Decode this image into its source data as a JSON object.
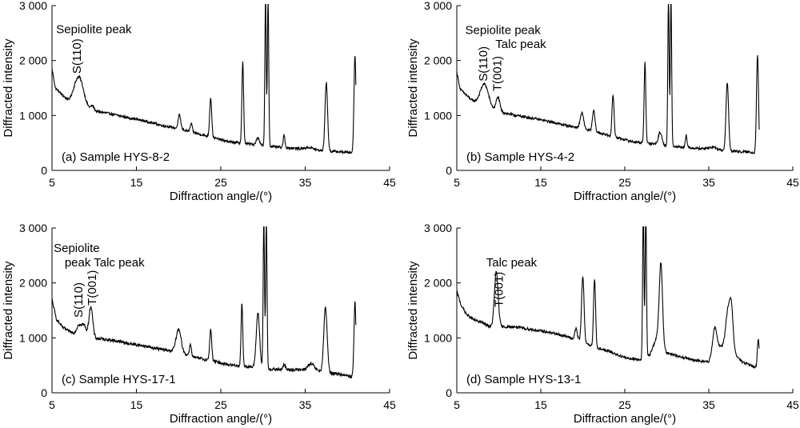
{
  "chart_data": [
    {
      "type": "line",
      "panel": "a",
      "sample_label": "(a) Sample HYS-8-2",
      "xlabel": "Diffraction angle/(°)",
      "ylabel": "Diffracted intensity",
      "xlim": [
        5,
        45
      ],
      "ylim": [
        0,
        3000
      ],
      "xticks": [
        "5",
        "15",
        "25",
        "35",
        "45"
      ],
      "yticks": [
        "0",
        "1 000",
        "2 000",
        "3 000"
      ],
      "annotations": [
        {
          "text": "Sepiolite peak",
          "x": 5.5,
          "y": 2500,
          "rotate": false
        },
        {
          "text": "S(110)",
          "x": 8.4,
          "y": 1760,
          "rotate": true
        }
      ],
      "baseline": [
        [
          5,
          1850
        ],
        [
          5.4,
          1500
        ],
        [
          6.2,
          1380
        ],
        [
          7,
          1250
        ],
        [
          7.6,
          1230
        ],
        [
          9,
          1120
        ],
        [
          10,
          1080
        ],
        [
          12,
          1030
        ],
        [
          14,
          960
        ],
        [
          16,
          900
        ],
        [
          18,
          820
        ],
        [
          20,
          760
        ],
        [
          22,
          680
        ],
        [
          24,
          600
        ],
        [
          26,
          520
        ],
        [
          28,
          490
        ],
        [
          30,
          450
        ],
        [
          32,
          420
        ],
        [
          34,
          400
        ],
        [
          36,
          370
        ],
        [
          38,
          350
        ],
        [
          40,
          330
        ],
        [
          41,
          310
        ]
      ],
      "peaks": [
        {
          "x": 8.2,
          "h": 520,
          "w": 0.55
        },
        {
          "x": 9.8,
          "h": 80,
          "w": 0.2
        },
        {
          "x": 20.1,
          "h": 250,
          "w": 0.15
        },
        {
          "x": 21.5,
          "h": 150,
          "w": 0.12
        },
        {
          "x": 23.8,
          "h": 720,
          "w": 0.12
        },
        {
          "x": 27.6,
          "h": 1480,
          "w": 0.1
        },
        {
          "x": 29.4,
          "h": 130,
          "w": 0.2
        },
        {
          "x": 30.3,
          "h": 2700,
          "w": 0.08
        },
        {
          "x": 30.6,
          "h": 2700,
          "w": 0.08
        },
        {
          "x": 32.5,
          "h": 230,
          "w": 0.1
        },
        {
          "x": 35.5,
          "h": 40,
          "w": 0.5
        },
        {
          "x": 37.5,
          "h": 1250,
          "w": 0.15
        },
        {
          "x": 40.9,
          "h": 1790,
          "w": 0.12
        }
      ],
      "noise": 22
    },
    {
      "type": "line",
      "panel": "b",
      "sample_label": "(b) Sample HYS-4-2",
      "xlabel": "Diffraction angle/(°)",
      "ylabel": "Diffracted intensity",
      "xlim": [
        5,
        45
      ],
      "ylim": [
        0,
        3000
      ],
      "xticks": [
        "5",
        "15",
        "25",
        "35",
        "45"
      ],
      "yticks": [
        "0",
        "1 000",
        "2 000",
        "3 000"
      ],
      "annotations": [
        {
          "text": "Sepiolite peak",
          "x": 6.0,
          "y": 2480,
          "rotate": false
        },
        {
          "text": "Talc peak",
          "x": 9.6,
          "y": 2230,
          "rotate": false
        },
        {
          "text": "S(110)",
          "x": 8.6,
          "y": 1620,
          "rotate": true
        },
        {
          "text": "T(001)",
          "x": 10.3,
          "y": 1440,
          "rotate": true
        }
      ],
      "baseline": [
        [
          5,
          1800
        ],
        [
          5.4,
          1480
        ],
        [
          6.2,
          1360
        ],
        [
          7,
          1250
        ],
        [
          7.6,
          1200
        ],
        [
          9,
          1100
        ],
        [
          10,
          1070
        ],
        [
          12,
          1000
        ],
        [
          14,
          950
        ],
        [
          16,
          890
        ],
        [
          18,
          820
        ],
        [
          20,
          760
        ],
        [
          22,
          680
        ],
        [
          24,
          600
        ],
        [
          26,
          520
        ],
        [
          28,
          490
        ],
        [
          30,
          450
        ],
        [
          32,
          420
        ],
        [
          34,
          400
        ],
        [
          36,
          370
        ],
        [
          38,
          350
        ],
        [
          40,
          330
        ],
        [
          41,
          310
        ]
      ],
      "peaks": [
        {
          "x": 8.3,
          "h": 420,
          "w": 0.5
        },
        {
          "x": 9.9,
          "h": 260,
          "w": 0.22
        },
        {
          "x": 19.9,
          "h": 280,
          "w": 0.2
        },
        {
          "x": 21.3,
          "h": 380,
          "w": 0.15
        },
        {
          "x": 23.6,
          "h": 760,
          "w": 0.12
        },
        {
          "x": 27.4,
          "h": 1480,
          "w": 0.1
        },
        {
          "x": 29.2,
          "h": 230,
          "w": 0.2
        },
        {
          "x": 30.2,
          "h": 2700,
          "w": 0.08
        },
        {
          "x": 30.5,
          "h": 2700,
          "w": 0.08
        },
        {
          "x": 32.3,
          "h": 230,
          "w": 0.1
        },
        {
          "x": 35.5,
          "h": 40,
          "w": 0.5
        },
        {
          "x": 37.2,
          "h": 1250,
          "w": 0.15
        },
        {
          "x": 40.8,
          "h": 1790,
          "w": 0.12
        }
      ],
      "noise": 22
    },
    {
      "type": "line",
      "panel": "c",
      "sample_label": "(c) Sample HYS-17-1",
      "xlabel": "Diffraction angle/(°)",
      "ylabel": "Diffracted intensity",
      "xlim": [
        5,
        45
      ],
      "ylim": [
        0,
        3000
      ],
      "xticks": [
        "5",
        "15",
        "25",
        "35",
        "45"
      ],
      "yticks": [
        "0",
        "1 000",
        "2 000",
        "3 000"
      ],
      "annotations": [
        {
          "text": "Sepiolite",
          "x": 5.2,
          "y": 2560,
          "rotate": false
        },
        {
          "text": "peak Talc peak",
          "x": 6.5,
          "y": 2300,
          "rotate": false
        },
        {
          "text": "S(110)",
          "x": 8.6,
          "y": 1370,
          "rotate": true
        },
        {
          "text": "T(001)",
          "x": 10.2,
          "y": 1590,
          "rotate": true
        }
      ],
      "baseline": [
        [
          5,
          1700
        ],
        [
          5.5,
          1350
        ],
        [
          6.2,
          1200
        ],
        [
          7,
          1120
        ],
        [
          7.8,
          1080
        ],
        [
          9.2,
          1000
        ],
        [
          10.2,
          990
        ],
        [
          12,
          960
        ],
        [
          14,
          900
        ],
        [
          16,
          850
        ],
        [
          18,
          790
        ],
        [
          20,
          740
        ],
        [
          22,
          640
        ],
        [
          24,
          580
        ],
        [
          26,
          510
        ],
        [
          28,
          480
        ],
        [
          30,
          440
        ],
        [
          32,
          420
        ],
        [
          34,
          420
        ],
        [
          36,
          400
        ],
        [
          38,
          360
        ],
        [
          40,
          320
        ],
        [
          41,
          260
        ]
      ],
      "peaks": [
        {
          "x": 8.2,
          "h": 180,
          "w": 0.25
        },
        {
          "x": 8.8,
          "h": 210,
          "w": 0.25
        },
        {
          "x": 9.6,
          "h": 580,
          "w": 0.22
        },
        {
          "x": 20.0,
          "h": 410,
          "w": 0.3
        },
        {
          "x": 21.4,
          "h": 210,
          "w": 0.12
        },
        {
          "x": 23.8,
          "h": 570,
          "w": 0.12
        },
        {
          "x": 27.5,
          "h": 1140,
          "w": 0.1
        },
        {
          "x": 29.4,
          "h": 1000,
          "w": 0.2
        },
        {
          "x": 30.1,
          "h": 2700,
          "w": 0.08
        },
        {
          "x": 30.4,
          "h": 2700,
          "w": 0.08
        },
        {
          "x": 32.5,
          "h": 90,
          "w": 0.15
        },
        {
          "x": 35.7,
          "h": 120,
          "w": 0.4
        },
        {
          "x": 37.4,
          "h": 1170,
          "w": 0.2
        },
        {
          "x": 40.9,
          "h": 1390,
          "w": 0.12
        }
      ],
      "noise": 28
    },
    {
      "type": "line",
      "panel": "d",
      "sample_label": "(d) Sample HYS-13-1",
      "xlabel": "Diffraction angle/(°)",
      "ylabel": "Diffracted intensity",
      "xlim": [
        5,
        45
      ],
      "ylim": [
        0,
        3000
      ],
      "xticks": [
        "5",
        "15",
        "25",
        "35",
        "45"
      ],
      "yticks": [
        "0",
        "1 000",
        "2 000",
        "3 000"
      ],
      "annotations": [
        {
          "text": "Talc peak",
          "x": 8.5,
          "y": 2300,
          "rotate": false
        },
        {
          "text": "T(001)",
          "x": 10.5,
          "y": 1560,
          "rotate": true
        }
      ],
      "baseline": [
        [
          5,
          1850
        ],
        [
          5.5,
          1600
        ],
        [
          6.2,
          1420
        ],
        [
          7,
          1330
        ],
        [
          8,
          1280
        ],
        [
          9,
          1200
        ],
        [
          10.5,
          1200
        ],
        [
          12,
          1200
        ],
        [
          14,
          1150
        ],
        [
          16,
          1100
        ],
        [
          18,
          1030
        ],
        [
          19.5,
          950
        ],
        [
          21,
          850
        ],
        [
          23,
          760
        ],
        [
          25,
          640
        ],
        [
          27,
          600
        ],
        [
          28,
          700
        ],
        [
          29,
          1100
        ],
        [
          30,
          720
        ],
        [
          31,
          680
        ],
        [
          33,
          600
        ],
        [
          35,
          560
        ],
        [
          36,
          800
        ],
        [
          37,
          900
        ],
        [
          38,
          720
        ],
        [
          39,
          560
        ],
        [
          40,
          500
        ],
        [
          41,
          420
        ]
      ],
      "peaks": [
        {
          "x": 9.7,
          "h": 1000,
          "w": 0.22
        },
        {
          "x": 19.2,
          "h": 200,
          "w": 0.15
        },
        {
          "x": 20.0,
          "h": 1200,
          "w": 0.15
        },
        {
          "x": 21.4,
          "h": 1250,
          "w": 0.12
        },
        {
          "x": 27.2,
          "h": 2700,
          "w": 0.08
        },
        {
          "x": 27.5,
          "h": 2700,
          "w": 0.08
        },
        {
          "x": 29.3,
          "h": 1400,
          "w": 0.18
        },
        {
          "x": 35.7,
          "h": 450,
          "w": 0.25
        },
        {
          "x": 37.3,
          "h": 650,
          "w": 0.25
        },
        {
          "x": 37.7,
          "h": 700,
          "w": 0.2
        },
        {
          "x": 40.9,
          "h": 550,
          "w": 0.12
        }
      ],
      "noise": 24
    }
  ]
}
